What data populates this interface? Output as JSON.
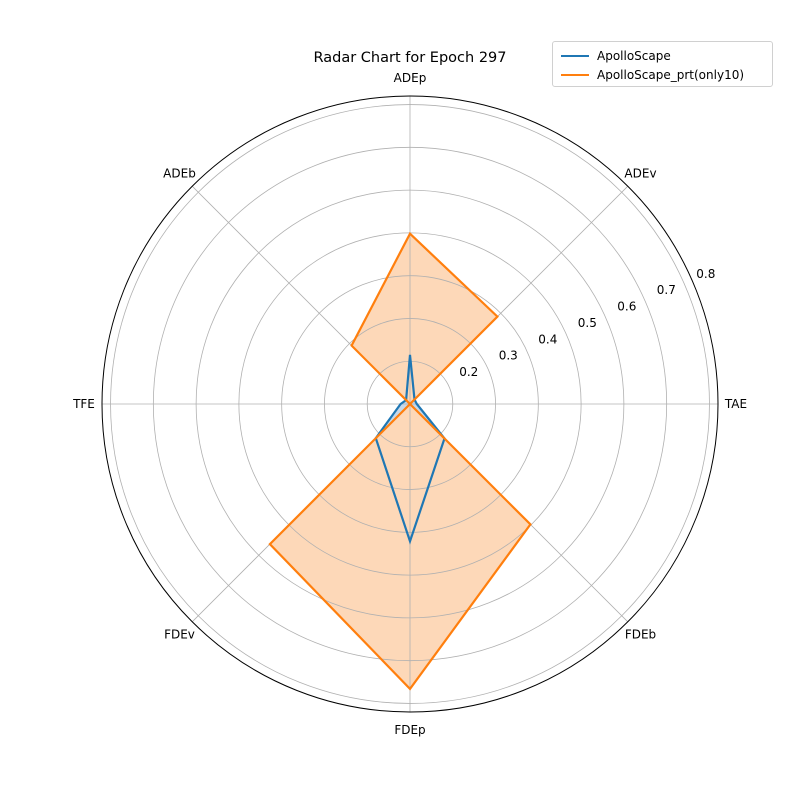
{
  "chart_data": {
    "type": "radar",
    "title": "Radar Chart for Epoch 297",
    "categories": [
      "TAE",
      "ADEv",
      "ADEp",
      "ADEb",
      "TFE",
      "FDEv",
      "FDEp",
      "FDEb"
    ],
    "r_ticks": [
      0.2,
      0.3,
      0.4,
      0.5,
      0.6,
      0.7,
      0.8
    ],
    "r_tick_labels": [
      "0.2",
      "0.3",
      "0.4",
      "0.5",
      "0.6",
      "0.7",
      "0.8"
    ],
    "rlim": [
      0.1,
      0.82
    ],
    "grid": true,
    "legend_position": "top-right",
    "series": [
      {
        "name": "ApolloScape",
        "color": "#1f77b4",
        "fill": "#c6d8ea",
        "values": [
          0.116,
          0.115,
          0.215,
          0.113,
          0.122,
          0.213,
          0.421,
          0.214
        ]
      },
      {
        "name": "ApolloScape_prt(only10)",
        "color": "#ff7f0e",
        "fill": "#fdd8b8",
        "values": [
          0.1,
          0.389,
          0.498,
          0.293,
          0.1,
          0.563,
          0.766,
          0.498
        ]
      }
    ]
  }
}
